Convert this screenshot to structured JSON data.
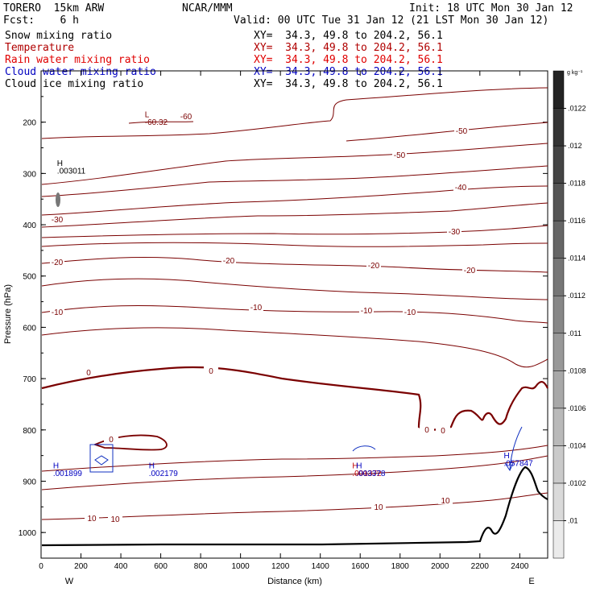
{
  "header": {
    "model": "TORERO  15km ARW",
    "institution": "NCAR/MMM",
    "init": "Init: 18 UTC Mon 30 Jan 12",
    "forecast": "Fcst:    6 h",
    "valid": "Valid: 00 UTC Tue 31 Jan 12 (21 LST Mon 30 Jan 12)"
  },
  "legend": [
    {
      "name": "Snow mixing ratio",
      "xy": "XY=  34.3, 49.8 to 204.2, 56.1",
      "color": "#000000"
    },
    {
      "name": "Temperature",
      "xy": "XY=  34.3, 49.8 to 204.2, 56.1",
      "color": "#b00000"
    },
    {
      "name": "Rain water mixing ratio",
      "xy": "XY=  34.3, 49.8 to 204.2, 56.1",
      "color": "#e00000"
    },
    {
      "name": "Cloud water mixing ratio",
      "xy": "XY=  34.3, 49.8 to 204.2, 56.1",
      "color": "#0000c0"
    },
    {
      "name": "Cloud ice mixing ratio",
      "xy": "XY=  34.3, 49.8 to 204.2, 56.1",
      "color": "#000000"
    }
  ],
  "chart_data": {
    "type": "line",
    "subtype": "vertical cross-section contour",
    "xlabel": "Distance (km)",
    "ylabel": "Pressure (hPa)",
    "xlim": [
      0,
      2540
    ],
    "ylim": [
      1050,
      100
    ],
    "x_ticks": [
      0,
      200,
      400,
      600,
      800,
      1000,
      1200,
      1400,
      1600,
      1800,
      2000,
      2200,
      2400
    ],
    "y_ticks": [
      200,
      300,
      400,
      500,
      600,
      700,
      800,
      900,
      1000
    ],
    "x_end_labels": {
      "left": "W",
      "right": "E"
    },
    "colorbar": {
      "unit": "g kg⁻¹",
      "ticks": [
        ".01",
        ".0102",
        ".0104",
        ".0106",
        ".0108",
        ".011",
        ".0112",
        ".0114",
        ".0116",
        ".0118",
        ".012",
        ".0122"
      ]
    },
    "temperature_isotherms_label_values": [
      -60,
      -50,
      -40,
      -30,
      -20,
      -10,
      0,
      10
    ],
    "annotations": [
      {
        "text": "L",
        "x": 520,
        "p": 190,
        "color": "#7a0000"
      },
      {
        "text": "-60.32",
        "x": 520,
        "p": 205,
        "color": "#7a0000"
      },
      {
        "text": "H",
        "x": 80,
        "p": 285,
        "color": "#000000"
      },
      {
        "text": ".003011",
        "x": 80,
        "p": 300,
        "color": "#000000"
      },
      {
        "text": "H",
        "x": 60,
        "p": 875,
        "color": "#0000c0"
      },
      {
        "text": ".001899",
        "x": 60,
        "p": 890,
        "color": "#0000c0"
      },
      {
        "text": "H",
        "x": 540,
        "p": 875,
        "color": "#0000c0"
      },
      {
        "text": ".002179",
        "x": 540,
        "p": 890,
        "color": "#0000c0"
      },
      {
        "text": "H",
        "x": 1560,
        "p": 875,
        "color": "#c00000"
      },
      {
        "text": ".001372",
        "x": 1560,
        "p": 890,
        "color": "#c00000"
      },
      {
        "text": "H",
        "x": 1580,
        "p": 875,
        "color": "#0000c0"
      },
      {
        "text": ".003378",
        "x": 1580,
        "p": 890,
        "color": "#0000c0"
      },
      {
        "text": "H",
        "x": 2320,
        "p": 855,
        "color": "#0000c0"
      },
      {
        "text": ".057847",
        "x": 2320,
        "p": 870,
        "color": "#0000c0"
      }
    ]
  }
}
